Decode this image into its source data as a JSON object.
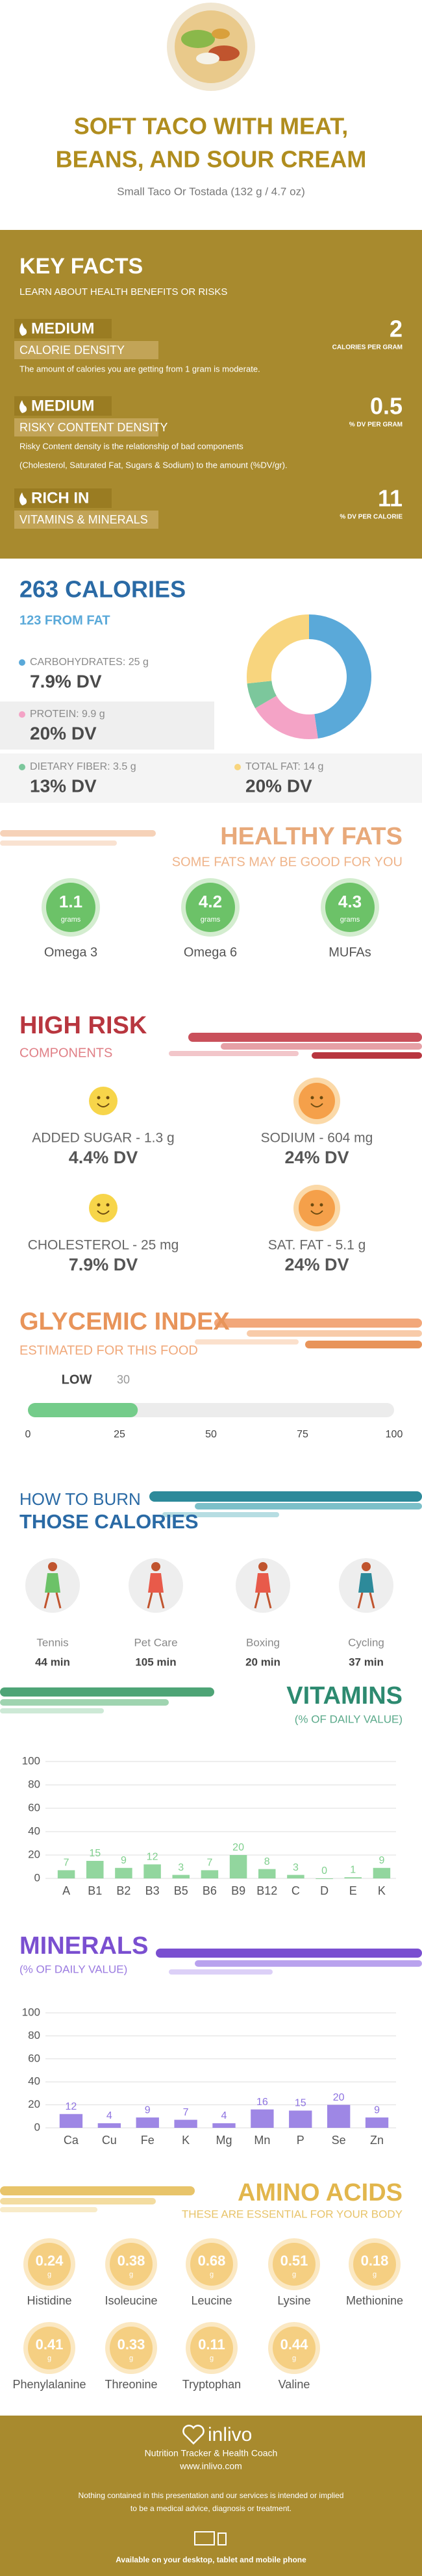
{
  "header": {
    "title_lines": [
      "SOFT TACO WITH MEAT,",
      "BEANS, AND SOUR CREAM"
    ],
    "subtitle": "Small Taco Or Tostada (132 g / 4.7 oz)"
  },
  "key_facts": {
    "title": "KEY FACTS",
    "subtitle": "LEARN ABOUT HEALTH BENEFITS OR RISKS",
    "items": [
      {
        "level": "MEDIUM",
        "label": "CALORIE DENSITY",
        "value": "2",
        "unit": "CALORIES PER GRAM",
        "description": [
          "The amount of calories you are getting from 1 gram is moderate."
        ]
      },
      {
        "level": "MEDIUM",
        "label": "RISKY CONTENT DENSITY",
        "value": "0.5",
        "unit": "% DV PER GRAM",
        "description": [
          "Risky Content density is the relationship of bad components",
          "(Cholesterol, Saturated Fat, Sugars & Sodium) to the amount (%DV/gr)."
        ]
      },
      {
        "level": "RICH  IN",
        "label": "VITAMINS & MINERALS",
        "value": "11",
        "unit": "% DV PER CALORIE"
      }
    ]
  },
  "healthy_fats": {
    "title": "HEALTHY FATS",
    "subtitle": "SOME FATS MAY BE GOOD FOR YOU",
    "items": [
      {
        "amount": "1.1",
        "unit": "grams",
        "name": "Omega 3"
      },
      {
        "amount": "4.2",
        "unit": "grams",
        "name": "Omega 6"
      },
      {
        "amount": "4.3",
        "unit": "grams",
        "name": "MUFAs"
      }
    ]
  },
  "high_risk": {
    "title": "HIGH RISK",
    "subtitle": "COMPONENTS",
    "items": [
      {
        "label": "ADDED SUGAR - 1.3 g",
        "dv": "4.4% DV"
      },
      {
        "label": "SODIUM - 604 mg",
        "dv": "24% DV"
      },
      {
        "label": "CHOLESTEROL - 25 mg",
        "dv": "7.9% DV"
      },
      {
        "label": "SAT. FAT - 5.1 g",
        "dv": "24% DV"
      }
    ]
  },
  "burn": {
    "title_lines": [
      "HOW TO BURN",
      "THOSE CALORIES"
    ],
    "items": [
      {
        "activity": "Tennis",
        "time": "44 min"
      },
      {
        "activity": "Pet Care",
        "time": "105 min"
      },
      {
        "activity": "Boxing",
        "time": "20 min"
      },
      {
        "activity": "Cycling",
        "time": "37 min"
      }
    ]
  },
  "amino_acids": {
    "title": "AMINO ACIDS",
    "subtitle": "THESE ARE ESSENTIAL FOR YOUR BODY",
    "items": [
      {
        "amount": "0.24",
        "unit": "g",
        "name": "Histidine"
      },
      {
        "amount": "0.38",
        "unit": "g",
        "name": "Isoleucine"
      },
      {
        "amount": "0.68",
        "unit": "g",
        "name": "Leucine"
      },
      {
        "amount": "0.51",
        "unit": "g",
        "name": "Lysine"
      },
      {
        "amount": "0.18",
        "unit": "g",
        "name": "Methionine"
      },
      {
        "amount": "0.41",
        "unit": "g",
        "name": "Phenylalanine"
      },
      {
        "amount": "0.33",
        "unit": "g",
        "name": "Threonine"
      },
      {
        "amount": "0.11",
        "unit": "g",
        "name": "Tryptophan"
      },
      {
        "amount": "0.44",
        "unit": "g",
        "name": "Valine"
      }
    ]
  },
  "footer": {
    "brand": "inlivo",
    "tagline": "Nutrition Tracker & Health Coach",
    "url": "www.inlivo.com",
    "disclaimer": [
      "Nothing contained in this presentation and our services is intended or implied",
      "to be a medical advice, diagnosis or treatment."
    ],
    "availability": "Available on your desktop, tablet and mobile phone"
  },
  "chart_data": [
    {
      "type": "pie",
      "donut": true,
      "title": "263 CALORIES",
      "subtitle": "123 FROM FAT",
      "categories": [
        "CARBOHYDRATES: 25 g",
        "PROTEIN: 9.9 g",
        "DIETARY FIBER: 3.5 g",
        "TOTAL FAT: 14 g"
      ],
      "values": [
        25,
        9.9,
        3.5,
        14
      ],
      "daily_values": [
        "7.9% DV",
        "20% DV",
        "13% DV",
        "20% DV"
      ],
      "colors": [
        "#5aa9d9",
        "#f4a3c6",
        "#7cc79c",
        "#f8d57e"
      ]
    },
    {
      "type": "bar",
      "orientation": "horizontal",
      "title": "GLYCEMIC INDEX",
      "subtitle": "ESTIMATED FOR THIS FOOD",
      "categories": [
        "LOW"
      ],
      "values": [
        30
      ],
      "xlim": [
        0,
        100
      ],
      "xticks": [
        0,
        25,
        50,
        75,
        100
      ],
      "color": "#74cc8a"
    },
    {
      "type": "bar",
      "title": "VITAMINS",
      "subtitle": "(% OF DAILY VALUE)",
      "categories": [
        "A",
        "B1",
        "B2",
        "B3",
        "B5",
        "B6",
        "B9",
        "B12",
        "C",
        "D",
        "E",
        "K"
      ],
      "values": [
        7,
        15,
        9,
        12,
        3,
        7,
        20,
        8,
        3,
        0,
        1,
        9
      ],
      "ylim": [
        0,
        100
      ],
      "yticks": [
        0,
        20,
        40,
        60,
        80,
        100
      ],
      "grid": true,
      "color": "#7fcf8d"
    },
    {
      "type": "bar",
      "title": "MINERALS",
      "subtitle": "(% OF DAILY VALUE)",
      "categories": [
        "Ca",
        "Cu",
        "Fe",
        "K",
        "Mg",
        "Mn",
        "P",
        "Se",
        "Zn"
      ],
      "values": [
        12,
        4,
        9,
        7,
        4,
        16,
        15,
        20,
        9
      ],
      "ylim": [
        0,
        100
      ],
      "yticks": [
        0,
        20,
        40,
        60,
        80,
        100
      ],
      "grid": true,
      "color": "#8d72e0"
    }
  ]
}
